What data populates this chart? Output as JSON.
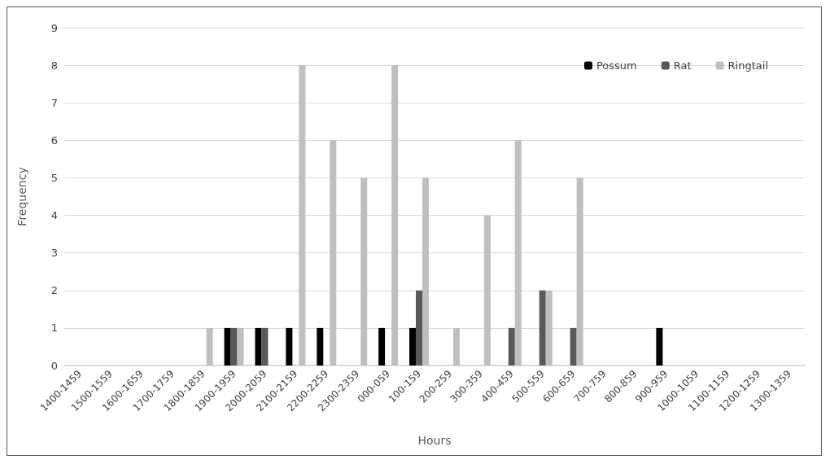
{
  "chart_data": {
    "type": "bar",
    "xlabel": "Hours",
    "ylabel": "Frequency",
    "categories": [
      "1400-1459",
      "1500-1559",
      "1600-1659",
      "1700-1759",
      "1800-1859",
      "1900-1959",
      "2000-2059",
      "2100-2159",
      "2200-2259",
      "2300-2359",
      "000-059",
      "100-159",
      "200-259",
      "300-359",
      "400-459",
      "500-559",
      "600-659",
      "700-759",
      "800-859",
      "900-959",
      "1000-1059",
      "1100-1159",
      "1200-1259",
      "1300-1359"
    ],
    "series": [
      {
        "name": "Possum",
        "color": "#000000",
        "values": [
          0,
          0,
          0,
          0,
          0,
          1,
          1,
          1,
          1,
          0,
          1,
          1,
          0,
          0,
          0,
          0,
          0,
          0,
          0,
          1,
          0,
          0,
          0,
          0
        ]
      },
      {
        "name": "Rat",
        "color": "#595959",
        "values": [
          0,
          0,
          0,
          0,
          0,
          1,
          1,
          0,
          0,
          0,
          0,
          2,
          0,
          0,
          1,
          2,
          1,
          0,
          0,
          0,
          0,
          0,
          0,
          0
        ]
      },
      {
        "name": "Ringtail",
        "color": "#bfbfbf",
        "values": [
          0,
          0,
          0,
          0,
          1,
          1,
          0,
          8,
          6,
          5,
          8,
          5,
          1,
          4,
          6,
          2,
          5,
          0,
          0,
          0,
          0,
          0,
          0,
          0
        ]
      }
    ],
    "ylim": [
      0,
      9
    ],
    "yticks": [
      0,
      1,
      2,
      3,
      4,
      5,
      6,
      7,
      8,
      9
    ],
    "grid": "y",
    "legend": "top right"
  }
}
